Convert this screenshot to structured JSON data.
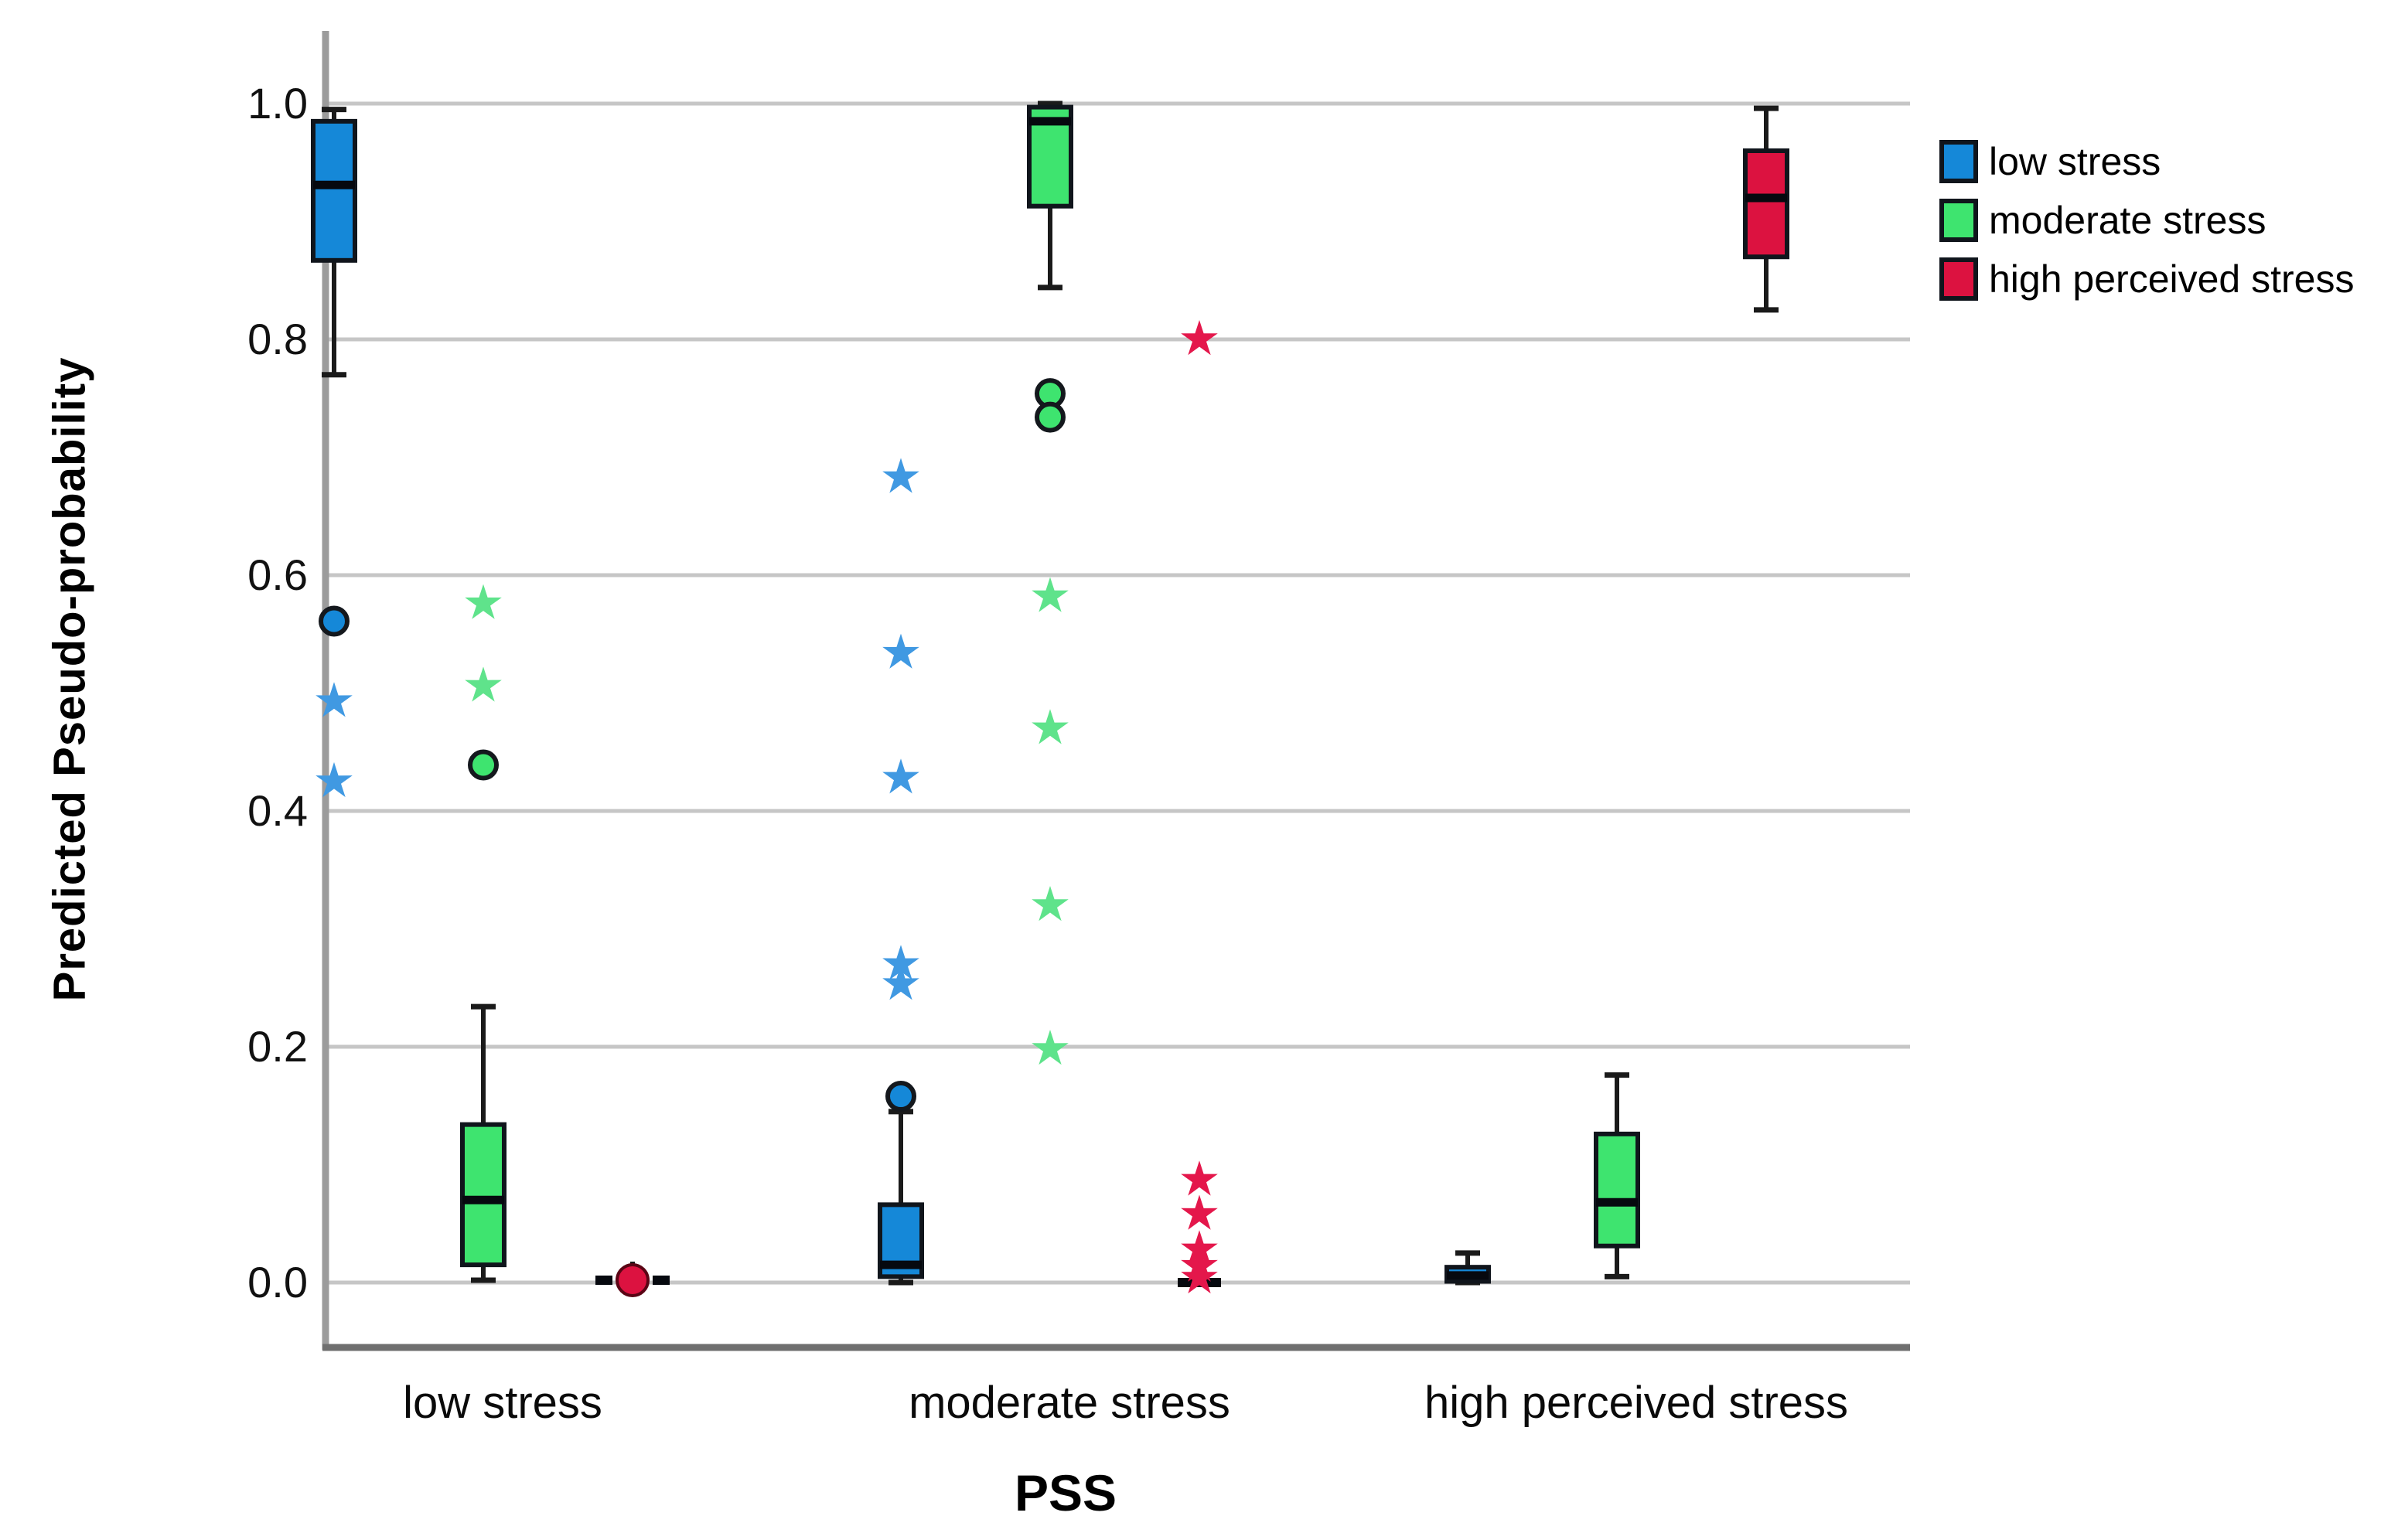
{
  "chart_data": {
    "type": "boxplot",
    "title": "",
    "xlabel": "PSS",
    "ylabel": "Predicted Pseudo-probability",
    "ylim": [
      0,
      1
    ],
    "grid": "horizontal",
    "legend_position": "top-right",
    "yticks": [
      {
        "label": "0.0",
        "value": 0.0
      },
      {
        "label": "0.2",
        "value": 0.2
      },
      {
        "label": "0.4",
        "value": 0.4
      },
      {
        "label": "0.6",
        "value": 0.6
      },
      {
        "label": "0.8",
        "value": 0.8
      },
      {
        "label": "1.0",
        "value": 1.0
      }
    ],
    "categories": [
      "low stress",
      "moderate stress",
      "high perceived stress"
    ],
    "series": [
      {
        "name": "low stress",
        "color": "#1588d8",
        "star_color": "#4099e2"
      },
      {
        "name": "moderate stress",
        "color": "#3ee46f",
        "star_color": "#5fe38b"
      },
      {
        "name": "high perceived stress",
        "color": "#dc1240",
        "star_color": "#e4174b"
      }
    ],
    "boxes": [
      {
        "category": "low stress",
        "series": "low stress",
        "whisker_low": 0.77,
        "q1": 0.867,
        "median": 0.931,
        "q3": 0.985,
        "whisker_high": 0.995,
        "outliers": [
          {
            "shape": "circle",
            "value": 0.561
          },
          {
            "shape": "star",
            "value": 0.493
          },
          {
            "shape": "star",
            "value": 0.425
          }
        ]
      },
      {
        "category": "low stress",
        "series": "moderate stress",
        "whisker_low": 0.002,
        "q1": 0.015,
        "median": 0.07,
        "q3": 0.134,
        "whisker_high": 0.234,
        "outliers": [
          {
            "shape": "star",
            "value": 0.576
          },
          {
            "shape": "star",
            "value": 0.506
          },
          {
            "shape": "circle",
            "value": 0.439
          }
        ]
      },
      {
        "category": "low stress",
        "series": "high perceived stress",
        "collapsed": true,
        "style": "dot",
        "whisker_low": 0.0,
        "q1": 0.0,
        "median": 0.002,
        "q3": 0.004,
        "whisker_high": 0.012,
        "outliers": []
      },
      {
        "category": "moderate stress",
        "series": "low stress",
        "whisker_low": 0.0,
        "q1": 0.005,
        "median": 0.015,
        "q3": 0.066,
        "whisker_high": 0.145,
        "outliers": [
          {
            "shape": "circle",
            "value": 0.158
          },
          {
            "shape": "star",
            "value": 0.253
          },
          {
            "shape": "star",
            "value": 0.27
          },
          {
            "shape": "star",
            "value": 0.428
          },
          {
            "shape": "star",
            "value": 0.534
          },
          {
            "shape": "star",
            "value": 0.683
          }
        ]
      },
      {
        "category": "moderate stress",
        "series": "moderate stress",
        "whisker_low": 0.844,
        "q1": 0.913,
        "median": 0.985,
        "q3": 0.997,
        "whisker_high": 1.0,
        "outliers": [
          {
            "shape": "circle",
            "value": 0.754
          },
          {
            "shape": "circle",
            "value": 0.734
          },
          {
            "shape": "star",
            "value": 0.582
          },
          {
            "shape": "star",
            "value": 0.47
          },
          {
            "shape": "star",
            "value": 0.32
          },
          {
            "shape": "star",
            "value": 0.198
          }
        ]
      },
      {
        "category": "moderate stress",
        "series": "high perceived stress",
        "collapsed": true,
        "style": "bar",
        "whisker_low": 0.0,
        "q1": 0.0,
        "median": 0.0,
        "q3": 0.002,
        "whisker_high": 0.004,
        "outliers": [
          {
            "shape": "star",
            "value": 0.8
          },
          {
            "shape": "star",
            "value": 0.087
          },
          {
            "shape": "star",
            "value": 0.058
          },
          {
            "shape": "star",
            "value": 0.028
          },
          {
            "shape": "star",
            "value": 0.014
          },
          {
            "shape": "star",
            "value": 0.004
          }
        ]
      },
      {
        "category": "high perceived stress",
        "series": "low stress",
        "whisker_low": 0.0,
        "q1": 0.001,
        "median": 0.006,
        "q3": 0.013,
        "whisker_high": 0.025,
        "outliers": []
      },
      {
        "category": "high perceived stress",
        "series": "moderate stress",
        "whisker_low": 0.005,
        "q1": 0.031,
        "median": 0.068,
        "q3": 0.126,
        "whisker_high": 0.176,
        "outliers": []
      },
      {
        "category": "high perceived stress",
        "series": "high perceived stress",
        "whisker_low": 0.825,
        "q1": 0.87,
        "median": 0.92,
        "q3": 0.96,
        "whisker_high": 0.996,
        "outliers": []
      }
    ]
  },
  "colors": {
    "gridline": "#c6c6c6",
    "axis_left": "#9b9b9b",
    "axis_bottom": "#6f6f6f",
    "box_border": "#10151c",
    "median": "#06090f",
    "whisker": "#1a1a1a"
  }
}
